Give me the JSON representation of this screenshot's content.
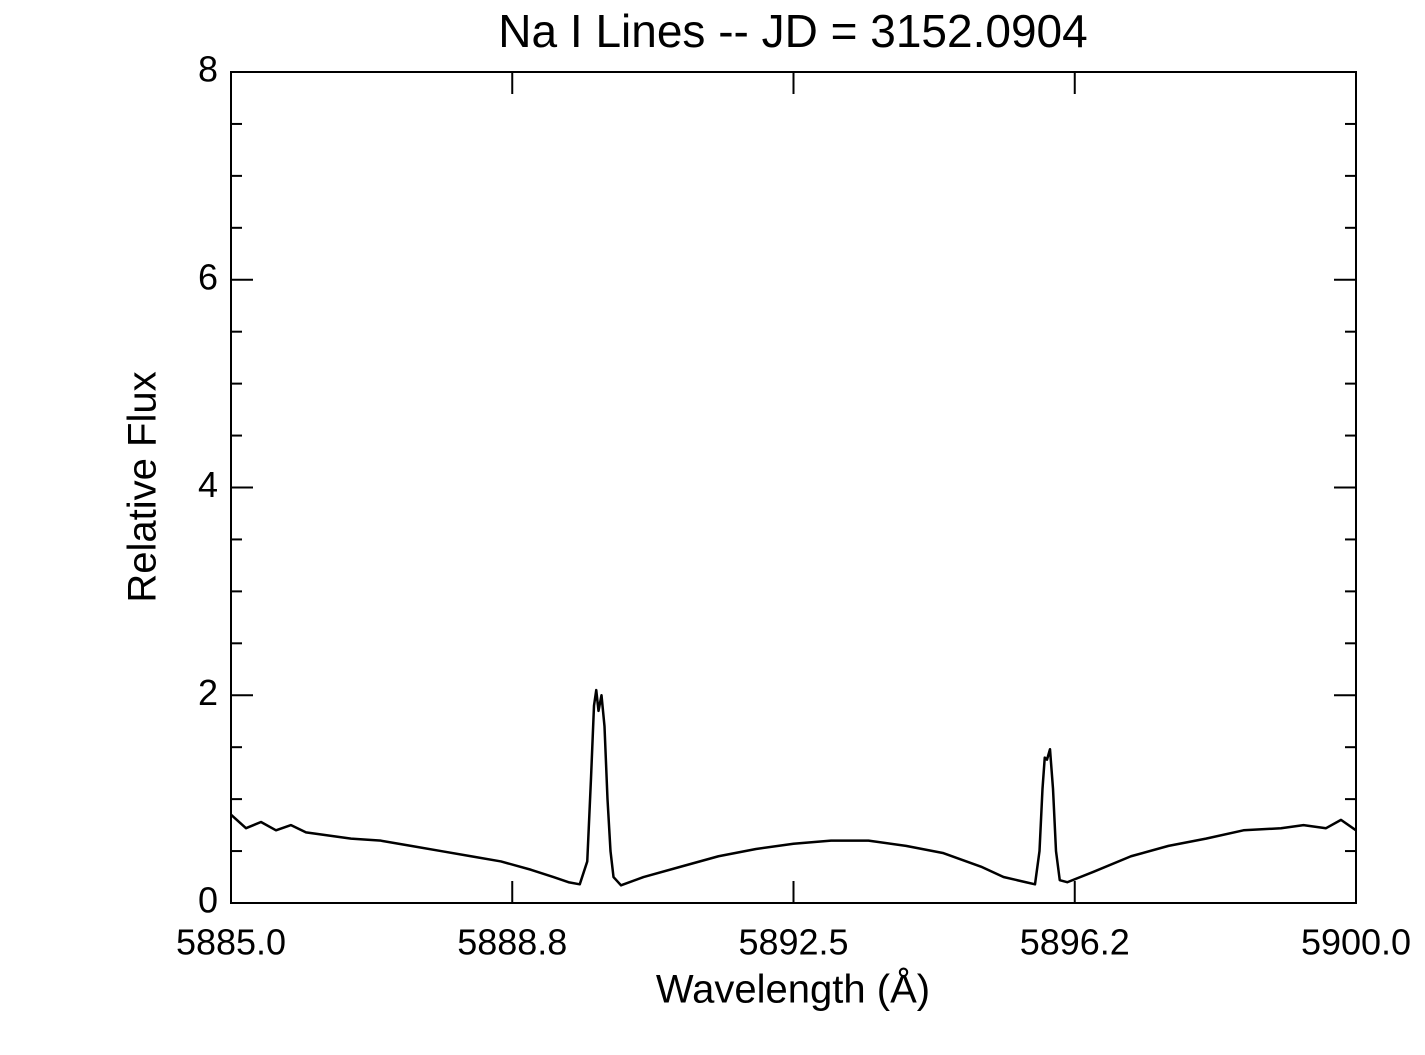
{
  "chart_data": {
    "type": "line",
    "title": "Na I Lines -- JD = 3152.0904",
    "x_label": "Wavelength (Å)",
    "y_label": "Relative Flux",
    "xlim": [
      5885,
      5900
    ],
    "ylim": [
      0,
      8
    ],
    "xticks": [
      {
        "value": 5885,
        "label": "5885.0"
      },
      {
        "value": 5888.75,
        "label": "5888.8"
      },
      {
        "value": 5892.5,
        "label": "5892.5"
      },
      {
        "value": 5896.25,
        "label": "5896.2"
      },
      {
        "value": 5900,
        "label": "5900.0"
      }
    ],
    "yticks": [
      0,
      2,
      4,
      6,
      8
    ],
    "yticks_minor": [
      0.5,
      1,
      1.5,
      2.5,
      3,
      3.5,
      4.5,
      5,
      5.5,
      6.5,
      7,
      7.5
    ],
    "series": [
      {
        "color": "#000000",
        "x": [
          5885.0,
          5885.2,
          5885.4,
          5885.6,
          5885.8,
          5886.0,
          5886.3,
          5886.6,
          5887.0,
          5887.4,
          5887.8,
          5888.2,
          5888.6,
          5889.0,
          5889.3,
          5889.5,
          5889.65,
          5889.75,
          5889.8,
          5889.84,
          5889.87,
          5889.9,
          5889.94,
          5889.98,
          5890.02,
          5890.06,
          5890.1,
          5890.2,
          5890.5,
          5891.0,
          5891.5,
          5892.0,
          5892.5,
          5893.0,
          5893.5,
          5894.0,
          5894.5,
          5895.0,
          5895.3,
          5895.6,
          5895.72,
          5895.78,
          5895.82,
          5895.85,
          5895.88,
          5895.92,
          5895.96,
          5896.0,
          5896.05,
          5896.15,
          5896.5,
          5897.0,
          5897.5,
          5898.0,
          5898.5,
          5899.0,
          5899.3,
          5899.6,
          5899.8,
          5900.0
        ],
        "values": [
          0.85,
          0.72,
          0.78,
          0.7,
          0.75,
          0.68,
          0.65,
          0.62,
          0.6,
          0.55,
          0.5,
          0.45,
          0.4,
          0.32,
          0.25,
          0.2,
          0.18,
          0.4,
          1.2,
          1.9,
          2.05,
          1.85,
          2.0,
          1.7,
          1.0,
          0.5,
          0.25,
          0.17,
          0.25,
          0.35,
          0.45,
          0.52,
          0.57,
          0.6,
          0.6,
          0.55,
          0.48,
          0.35,
          0.25,
          0.2,
          0.18,
          0.5,
          1.1,
          1.4,
          1.38,
          1.48,
          1.1,
          0.5,
          0.22,
          0.2,
          0.3,
          0.45,
          0.55,
          0.62,
          0.7,
          0.72,
          0.75,
          0.72,
          0.8,
          0.7
        ]
      }
    ]
  }
}
